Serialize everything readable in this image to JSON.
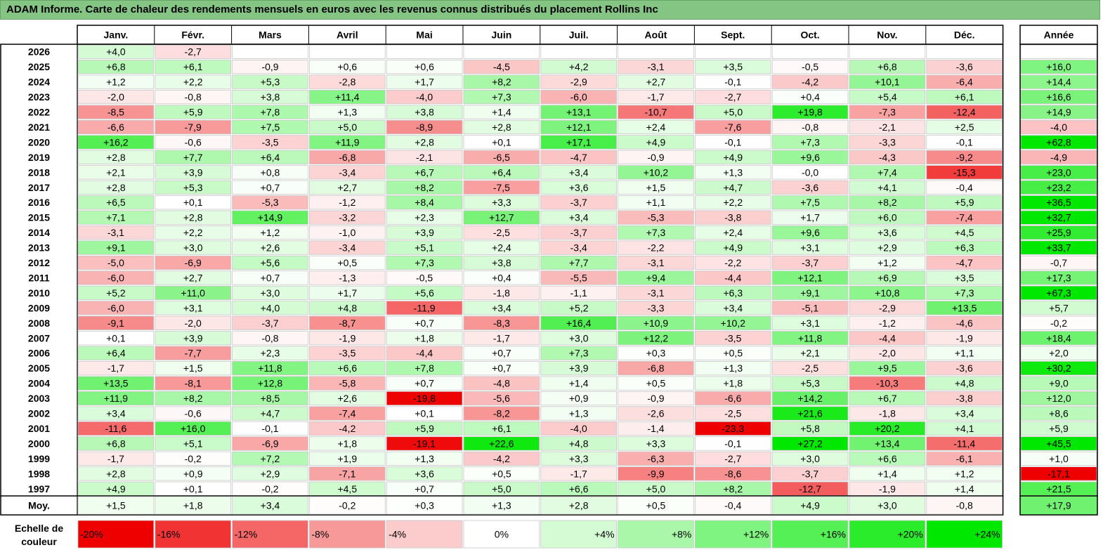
{
  "title": "ADAM Informe. Carte de chaleur des rendements mensuels en euros avec les revenus connus distribués du placement Rollins Inc",
  "chart_data": {
    "type": "heatmap",
    "columns": [
      "Janv.",
      "Févr.",
      "Mars",
      "Avril",
      "Mai",
      "Juin",
      "Juil.",
      "Août",
      "Sept.",
      "Oct.",
      "Nov.",
      "Déc."
    ],
    "year_header": "Année",
    "average_label": "Moy.",
    "scale_label_line1": "Echelle de",
    "scale_label_line2": "couleur",
    "rows": [
      {
        "label": "2026",
        "values": [
          4.0,
          -2.7,
          null,
          null,
          null,
          null,
          null,
          null,
          null,
          null,
          null,
          null
        ],
        "year": null
      },
      {
        "label": "2025",
        "values": [
          6.8,
          6.1,
          -0.9,
          0.6,
          0.6,
          -4.5,
          4.2,
          -3.1,
          3.5,
          -0.5,
          6.8,
          -3.6
        ],
        "year": 16.0
      },
      {
        "label": "2024",
        "values": [
          1.2,
          2.2,
          5.3,
          -2.8,
          1.7,
          8.2,
          -2.9,
          2.7,
          -0.1,
          -4.2,
          10.1,
          -6.4
        ],
        "year": 14.4
      },
      {
        "label": "2023",
        "values": [
          -2.0,
          -0.8,
          3.8,
          11.4,
          -4.0,
          7.3,
          -6.0,
          -1.7,
          -2.7,
          0.4,
          5.4,
          6.1
        ],
        "year": 16.6
      },
      {
        "label": "2022",
        "values": [
          -8.5,
          5.9,
          7.8,
          1.3,
          3.8,
          1.4,
          13.1,
          -10.7,
          5.0,
          19.8,
          -7.3,
          -12.4
        ],
        "year": 14.9
      },
      {
        "label": "2021",
        "values": [
          -6.6,
          -7.9,
          7.5,
          5.0,
          -8.9,
          2.8,
          12.1,
          2.4,
          -7.6,
          -0.8,
          -2.1,
          2.5
        ],
        "year": -4.0
      },
      {
        "label": "2020",
        "values": [
          16.2,
          -0.6,
          -3.5,
          11.9,
          2.8,
          0.1,
          17.1,
          4.9,
          -0.1,
          7.3,
          -3.3,
          -0.1
        ],
        "year": 62.8
      },
      {
        "label": "2019",
        "values": [
          2.8,
          7.7,
          6.4,
          -6.8,
          -2.1,
          -6.5,
          -4.7,
          -0.9,
          4.9,
          9.6,
          -4.3,
          -9.2
        ],
        "year": -4.9
      },
      {
        "label": "2018",
        "values": [
          2.1,
          3.9,
          0.8,
          -3.4,
          6.7,
          6.4,
          3.4,
          10.2,
          1.3,
          -0.0,
          7.4,
          -15.3
        ],
        "year": 23.0
      },
      {
        "label": "2017",
        "values": [
          2.8,
          5.3,
          0.7,
          2.7,
          8.2,
          -7.5,
          3.6,
          1.5,
          4.7,
          -3.6,
          4.1,
          -0.4
        ],
        "year": 23.2
      },
      {
        "label": "2016",
        "values": [
          6.5,
          0.1,
          -5.3,
          -1.2,
          8.4,
          3.3,
          -3.7,
          1.1,
          2.2,
          7.5,
          8.2,
          5.9
        ],
        "year": 36.5
      },
      {
        "label": "2015",
        "values": [
          7.1,
          2.8,
          14.9,
          -3.2,
          2.3,
          12.7,
          3.4,
          -5.3,
          -3.8,
          1.7,
          6.0,
          -7.4
        ],
        "year": 32.7
      },
      {
        "label": "2014",
        "values": [
          -3.1,
          2.2,
          1.2,
          -1.0,
          3.9,
          -2.5,
          -3.7,
          7.3,
          2.4,
          9.6,
          3.6,
          4.5
        ],
        "year": 25.9
      },
      {
        "label": "2013",
        "values": [
          9.1,
          3.0,
          2.6,
          -3.4,
          5.1,
          2.4,
          -3.4,
          -2.2,
          4.9,
          3.1,
          2.9,
          6.3
        ],
        "year": 33.7
      },
      {
        "label": "2012",
        "values": [
          -5.0,
          -6.9,
          5.6,
          0.5,
          7.3,
          3.8,
          7.7,
          -3.1,
          -2.2,
          -3.7,
          1.2,
          -4.7
        ],
        "year": -0.7
      },
      {
        "label": "2011",
        "values": [
          -6.0,
          2.7,
          0.7,
          -1.3,
          -0.5,
          0.4,
          -5.5,
          9.4,
          -4.4,
          12.1,
          6.9,
          3.5
        ],
        "year": 17.3
      },
      {
        "label": "2010",
        "values": [
          5.2,
          11.0,
          3.0,
          1.7,
          5.6,
          -1.8,
          -1.1,
          -3.1,
          6.3,
          9.1,
          10.8,
          7.3
        ],
        "year": 67.3
      },
      {
        "label": "2009",
        "values": [
          -6.0,
          3.1,
          4.0,
          4.8,
          -11.9,
          3.4,
          5.2,
          -3.3,
          3.4,
          -5.1,
          -2.9,
          13.5
        ],
        "year": 5.7
      },
      {
        "label": "2008",
        "values": [
          -9.1,
          -2.0,
          -3.7,
          -8.7,
          0.7,
          -8.3,
          16.4,
          10.9,
          10.2,
          3.1,
          -1.2,
          -4.6
        ],
        "year": -0.2
      },
      {
        "label": "2007",
        "values": [
          0.1,
          3.9,
          -0.8,
          -1.9,
          1.8,
          -1.7,
          3.0,
          12.2,
          -3.5,
          11.8,
          -4.4,
          -1.9
        ],
        "year": 18.4
      },
      {
        "label": "2006",
        "values": [
          6.4,
          -7.7,
          2.3,
          -3.5,
          -4.4,
          0.7,
          7.3,
          0.3,
          0.5,
          2.1,
          -2.0,
          1.1
        ],
        "year": 2.0
      },
      {
        "label": "2005",
        "values": [
          -1.7,
          1.5,
          11.8,
          6.6,
          7.8,
          0.7,
          3.9,
          -6.8,
          1.3,
          -2.5,
          9.5,
          -3.6
        ],
        "year": 30.2
      },
      {
        "label": "2004",
        "values": [
          13.5,
          -8.1,
          12.8,
          -5.8,
          0.7,
          -4.8,
          1.4,
          0.5,
          1.8,
          5.3,
          -10.3,
          4.8
        ],
        "year": 9.0
      },
      {
        "label": "2003",
        "values": [
          11.9,
          8.2,
          8.5,
          2.6,
          -19.8,
          -5.6,
          0.9,
          -0.9,
          -6.6,
          14.2,
          6.7,
          -3.8
        ],
        "year": 12.0
      },
      {
        "label": "2002",
        "values": [
          3.4,
          -0.6,
          4.7,
          -7.4,
          0.1,
          -8.2,
          1.3,
          -2.6,
          -2.5,
          21.6,
          -1.8,
          3.4
        ],
        "year": 8.6
      },
      {
        "label": "2001",
        "values": [
          -11.6,
          16.0,
          -0.1,
          -4.2,
          5.9,
          6.1,
          -4.0,
          -1.4,
          -23.3,
          5.8,
          20.2,
          4.1
        ],
        "year": 5.9
      },
      {
        "label": "2000",
        "values": [
          6.8,
          5.1,
          -6.9,
          1.8,
          -19.1,
          22.6,
          4.8,
          3.3,
          -0.1,
          27.2,
          13.4,
          -11.4
        ],
        "year": 45.5
      },
      {
        "label": "1999",
        "values": [
          -1.7,
          -0.2,
          7.2,
          1.9,
          1.3,
          -4.2,
          3.3,
          -6.3,
          -2.7,
          3.0,
          6.6,
          -6.1
        ],
        "year": 1.0
      },
      {
        "label": "1998",
        "values": [
          2.8,
          0.9,
          2.9,
          -7.1,
          3.6,
          0.5,
          -1.7,
          -9.9,
          -8.6,
          -3.7,
          1.4,
          1.2
        ],
        "year": -17.1
      },
      {
        "label": "1997",
        "values": [
          4.9,
          0.1,
          -0.2,
          4.5,
          0.7,
          5.0,
          6.6,
          5.0,
          8.2,
          -12.7,
          -1.9,
          1.4
        ],
        "year": 21.5
      }
    ],
    "averages": [
      1.5,
      1.8,
      3.4,
      -0.2,
      0.3,
      1.3,
      2.8,
      0.5,
      -0.4,
      4.9,
      3.0,
      -0.8
    ],
    "average_year": 17.9,
    "scale": [
      {
        "label": "-20%",
        "value": -20
      },
      {
        "label": "-16%",
        "value": -16
      },
      {
        "label": "-12%",
        "value": -12
      },
      {
        "label": "-8%",
        "value": -8
      },
      {
        "label": "-4%",
        "value": -4
      },
      {
        "label": "0%",
        "value": 0
      },
      {
        "label": "+4%",
        "value": 4
      },
      {
        "label": "+8%",
        "value": 8
      },
      {
        "label": "+12%",
        "value": 12
      },
      {
        "label": "+16%",
        "value": 16
      },
      {
        "label": "+20%",
        "value": 20
      },
      {
        "label": "+24%",
        "value": 24
      }
    ]
  }
}
